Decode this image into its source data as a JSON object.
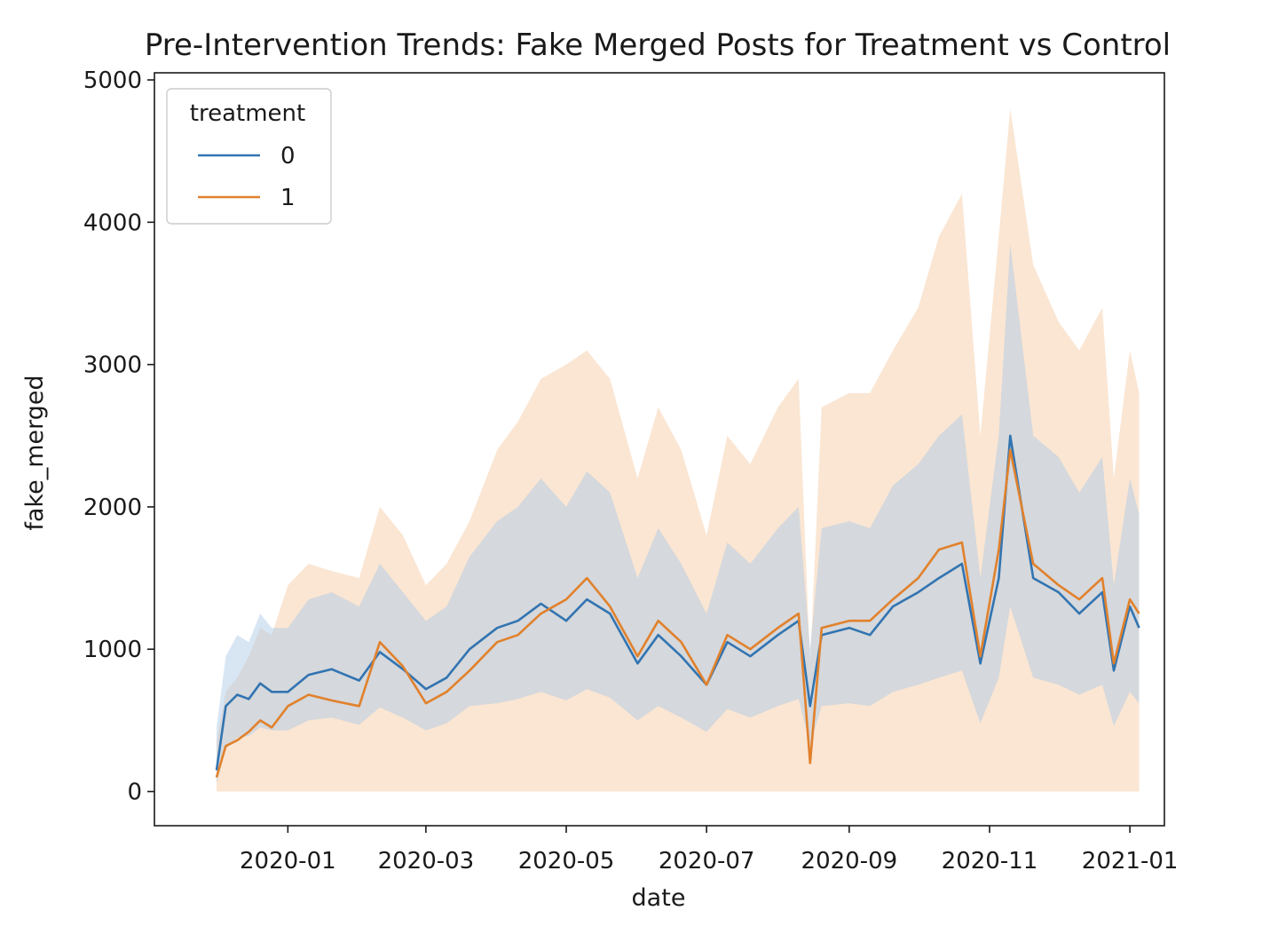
{
  "chart_data": {
    "type": "line",
    "title": "Pre-Intervention Trends: Fake Merged Posts for Treatment vs Control",
    "xlabel": "date",
    "ylabel": "fake_merged",
    "x_ticks": [
      "2020-01",
      "2020-03",
      "2020-05",
      "2020-07",
      "2020-09",
      "2020-11",
      "2021-01"
    ],
    "y_ticks": [
      "0",
      "1000",
      "2000",
      "3000",
      "4000",
      "5000"
    ],
    "xlim": [
      "2019-11-04",
      "2021-01-16"
    ],
    "ylim": [
      -240,
      5050
    ],
    "legend": {
      "title": "treatment",
      "placement": "top-left"
    },
    "grid": false,
    "series": [
      {
        "name": "0",
        "color": "#3274b1",
        "band_color": "#a9c8e6",
        "x": [
          "2019-12-01",
          "2019-12-05",
          "2019-12-10",
          "2019-12-15",
          "2019-12-20",
          "2019-12-25",
          "2020-01-01",
          "2020-01-10",
          "2020-01-20",
          "2020-02-01",
          "2020-02-10",
          "2020-02-20",
          "2020-03-01",
          "2020-03-10",
          "2020-03-20",
          "2020-04-01",
          "2020-04-10",
          "2020-04-20",
          "2020-05-01",
          "2020-05-10",
          "2020-05-20",
          "2020-06-01",
          "2020-06-10",
          "2020-06-20",
          "2020-07-01",
          "2020-07-10",
          "2020-07-20",
          "2020-08-01",
          "2020-08-10",
          "2020-08-15",
          "2020-08-20",
          "2020-09-01",
          "2020-09-10",
          "2020-09-20",
          "2020-10-01",
          "2020-10-10",
          "2020-10-20",
          "2020-10-28",
          "2020-11-05",
          "2020-11-10",
          "2020-11-20",
          "2020-12-01",
          "2020-12-10",
          "2020-12-20",
          "2020-12-25",
          "2021-01-01",
          "2021-01-05"
        ],
        "values": [
          150,
          600,
          680,
          650,
          760,
          700,
          700,
          820,
          860,
          780,
          980,
          860,
          720,
          800,
          1000,
          1150,
          1200,
          1320,
          1200,
          1350,
          1250,
          900,
          1100,
          950,
          750,
          1050,
          950,
          1100,
          1200,
          600,
          1100,
          1150,
          1100,
          1300,
          1400,
          1500,
          1600,
          900,
          1500,
          2500,
          1500,
          1400,
          1250,
          1400,
          850,
          1300,
          1150
        ],
        "ci_low": [
          60,
          300,
          380,
          390,
          450,
          430,
          430,
          500,
          520,
          470,
          590,
          520,
          430,
          480,
          600,
          620,
          650,
          700,
          640,
          720,
          660,
          500,
          600,
          520,
          420,
          580,
          520,
          600,
          650,
          330,
          600,
          620,
          600,
          700,
          750,
          800,
          850,
          480,
          800,
          1300,
          800,
          750,
          680,
          750,
          460,
          700,
          620
        ],
        "ci_high": [
          450,
          950,
          1100,
          1050,
          1250,
          1150,
          1150,
          1350,
          1400,
          1300,
          1600,
          1400,
          1200,
          1300,
          1650,
          1900,
          2000,
          2200,
          2000,
          2250,
          2100,
          1500,
          1850,
          1600,
          1250,
          1750,
          1600,
          1850,
          2000,
          1000,
          1850,
          1900,
          1850,
          2150,
          2300,
          2500,
          2650,
          1500,
          2500,
          3850,
          2500,
          2350,
          2100,
          2350,
          1450,
          2200,
          1950
        ]
      },
      {
        "name": "1",
        "color": "#e1812c",
        "band_color": "#f5c79e",
        "x": [
          "2019-12-01",
          "2019-12-05",
          "2019-12-10",
          "2019-12-15",
          "2019-12-20",
          "2019-12-25",
          "2020-01-01",
          "2020-01-10",
          "2020-01-20",
          "2020-02-01",
          "2020-02-10",
          "2020-02-20",
          "2020-03-01",
          "2020-03-10",
          "2020-03-20",
          "2020-04-01",
          "2020-04-10",
          "2020-04-20",
          "2020-05-01",
          "2020-05-10",
          "2020-05-20",
          "2020-06-01",
          "2020-06-10",
          "2020-06-20",
          "2020-07-01",
          "2020-07-10",
          "2020-07-20",
          "2020-08-01",
          "2020-08-10",
          "2020-08-15",
          "2020-08-20",
          "2020-09-01",
          "2020-09-10",
          "2020-09-20",
          "2020-10-01",
          "2020-10-10",
          "2020-10-20",
          "2020-10-28",
          "2020-11-05",
          "2020-11-10",
          "2020-11-20",
          "2020-12-01",
          "2020-12-10",
          "2020-12-20",
          "2020-12-25",
          "2021-01-01",
          "2021-01-05"
        ],
        "values": [
          100,
          320,
          360,
          420,
          500,
          450,
          600,
          680,
          640,
          600,
          1050,
          880,
          620,
          700,
          850,
          1050,
          1100,
          1250,
          1350,
          1500,
          1300,
          950,
          1200,
          1050,
          750,
          1100,
          1000,
          1150,
          1250,
          200,
          1150,
          1200,
          1200,
          1350,
          1500,
          1700,
          1750,
          950,
          1700,
          2400,
          1600,
          1450,
          1350,
          1500,
          900,
          1350,
          1250
        ],
        "ci_low": [
          0,
          0,
          0,
          0,
          0,
          0,
          0,
          0,
          0,
          0,
          0,
          0,
          0,
          0,
          0,
          0,
          0,
          0,
          0,
          0,
          0,
          0,
          0,
          0,
          0,
          0,
          0,
          0,
          0,
          0,
          0,
          0,
          0,
          0,
          0,
          0,
          0,
          0,
          0,
          0,
          0,
          0,
          0,
          0,
          0,
          0,
          0
        ],
        "ci_high": [
          350,
          700,
          800,
          950,
          1150,
          1100,
          1450,
          1600,
          1550,
          1500,
          2000,
          1800,
          1450,
          1600,
          1900,
          2400,
          2600,
          2900,
          3000,
          3100,
          2900,
          2200,
          2700,
          2400,
          1800,
          2500,
          2300,
          2700,
          2900,
          900,
          2700,
          2800,
          2800,
          3100,
          3400,
          3900,
          4200,
          2500,
          3900,
          4800,
          3700,
          3300,
          3100,
          3400,
          2200,
          3100,
          2800
        ]
      }
    ]
  }
}
